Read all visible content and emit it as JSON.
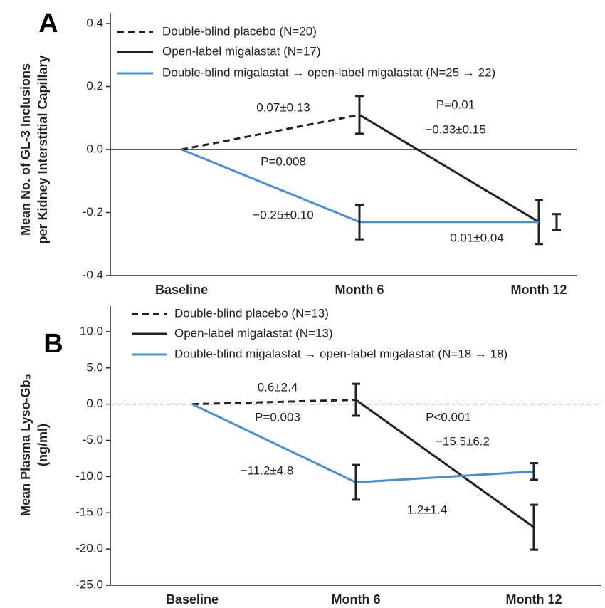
{
  "chart_data": [
    {
      "type": "line",
      "panel": "A",
      "ylabel": [
        "Mean No. of GL-3 Inclusions",
        "per Kidney Interstitial Capillary"
      ],
      "categories": [
        "Baseline",
        "Month 6",
        "Month 12"
      ],
      "ylim": [
        -0.4,
        0.4
      ],
      "yticks": [
        -0.4,
        -0.2,
        {
          "value": 0,
          "label": "0.0"
        },
        0.2,
        0.4
      ],
      "zero_line": "solid",
      "series": [
        {
          "name": "Double-blind placebo (N=20)",
          "color": "#222222",
          "dash": true,
          "values": [
            0,
            0.11,
            null
          ],
          "errors": [
            null,
            0.06,
            null
          ]
        },
        {
          "name": "Open-label migalastat (N=17)",
          "color": "#222222",
          "dash": false,
          "values": [
            null,
            0.11,
            -0.23
          ],
          "errors": [
            null,
            null,
            0.07
          ]
        },
        {
          "name": "Double-blind migalastat → open-label migalastat (N=25 → 22)",
          "color": "#4a90d0",
          "dash": false,
          "values": [
            0,
            -0.23,
            -0.23
          ],
          "errors": [
            null,
            0.055,
            0.025
          ]
        }
      ],
      "annotations": [
        "0.07±0.13",
        "P=0.01",
        "−0.33±0.15",
        "P=0.008",
        "−0.25±0.10",
        "0.01±0.04"
      ]
    },
    {
      "type": "line",
      "panel": "B",
      "ylabel": [
        "Mean Plasma Lyso-Gb₃",
        "(ng/ml)"
      ],
      "categories": [
        "Baseline",
        "Month 6",
        "Month 12"
      ],
      "ylim": [
        -25,
        13.5
      ],
      "yticks": [
        {
          "value": -25,
          "label": "-25.0"
        },
        {
          "value": -20,
          "label": "-20.0"
        },
        {
          "value": -15,
          "label": "-15.0"
        },
        {
          "value": -10,
          "label": "-10.0"
        },
        {
          "value": -5,
          "label": "-5.0"
        },
        {
          "value": 0,
          "label": "0.0"
        },
        {
          "value": 5,
          "label": "5.0"
        },
        {
          "value": 10,
          "label": "10.0"
        }
      ],
      "zero_line": "dashed",
      "series": [
        {
          "name": "Double-blind placebo (N=13)",
          "color": "#222222",
          "dash": true,
          "values": [
            0,
            0.6,
            null
          ],
          "errors": [
            null,
            2.2,
            null
          ]
        },
        {
          "name": "Open-label migalastat (N=13)",
          "color": "#222222",
          "dash": false,
          "values": [
            null,
            0.6,
            -17.0
          ],
          "errors": [
            null,
            null,
            3.1
          ]
        },
        {
          "name": "Double-blind migalastat → open-label migalastat (N=18 → 18)",
          "color": "#4a90d0",
          "dash": false,
          "values": [
            0,
            -10.8,
            -9.3
          ],
          "errors": [
            null,
            2.4,
            1.15
          ]
        }
      ],
      "annotations": [
        "0.6±2.4",
        "P=0.003",
        "P<0.001",
        "−15.5±6.2",
        "−11.2±4.8",
        "1.2±1.4"
      ]
    }
  ]
}
